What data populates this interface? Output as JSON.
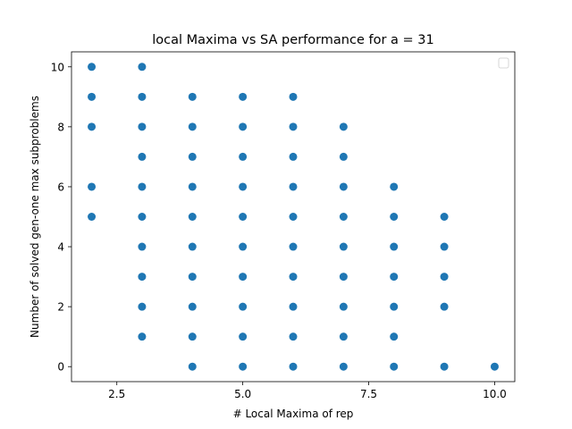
{
  "chart_data": {
    "type": "scatter",
    "title": "local Maxima vs SA performance for a = 31",
    "xlabel": "# Local Maxima of rep",
    "ylabel": "Number of solved gen-one max subproblems",
    "xlim": [
      1.6,
      10.4
    ],
    "ylim": [
      -0.5,
      10.5
    ],
    "xticks": [
      2.5,
      5.0,
      7.5,
      10.0
    ],
    "xtick_labels": [
      "2.5",
      "5.0",
      "7.5",
      "10.0"
    ],
    "yticks": [
      0,
      2,
      4,
      6,
      8,
      10
    ],
    "ytick_labels": [
      "0",
      "2",
      "4",
      "6",
      "8",
      "10"
    ],
    "grid": false,
    "legend": "top-right (empty)",
    "marker_color": "#1f77b4",
    "series": [
      {
        "points": [
          [
            2,
            10
          ],
          [
            2,
            9
          ],
          [
            2,
            8
          ],
          [
            2,
            6
          ],
          [
            2,
            5
          ],
          [
            3,
            10
          ],
          [
            3,
            9
          ],
          [
            3,
            8
          ],
          [
            3,
            7
          ],
          [
            3,
            6
          ],
          [
            3,
            5
          ],
          [
            3,
            4
          ],
          [
            3,
            3
          ],
          [
            3,
            2
          ],
          [
            3,
            1
          ],
          [
            4,
            9
          ],
          [
            4,
            8
          ],
          [
            4,
            7
          ],
          [
            4,
            6
          ],
          [
            4,
            5
          ],
          [
            4,
            4
          ],
          [
            4,
            3
          ],
          [
            4,
            2
          ],
          [
            4,
            1
          ],
          [
            4,
            0
          ],
          [
            5,
            9
          ],
          [
            5,
            8
          ],
          [
            5,
            7
          ],
          [
            5,
            6
          ],
          [
            5,
            5
          ],
          [
            5,
            4
          ],
          [
            5,
            3
          ],
          [
            5,
            2
          ],
          [
            5,
            1
          ],
          [
            5,
            0
          ],
          [
            6,
            9
          ],
          [
            6,
            8
          ],
          [
            6,
            7
          ],
          [
            6,
            6
          ],
          [
            6,
            5
          ],
          [
            6,
            4
          ],
          [
            6,
            3
          ],
          [
            6,
            2
          ],
          [
            6,
            1
          ],
          [
            6,
            0
          ],
          [
            7,
            8
          ],
          [
            7,
            7
          ],
          [
            7,
            6
          ],
          [
            7,
            5
          ],
          [
            7,
            4
          ],
          [
            7,
            3
          ],
          [
            7,
            2
          ],
          [
            7,
            1
          ],
          [
            7,
            0
          ],
          [
            8,
            6
          ],
          [
            8,
            5
          ],
          [
            8,
            4
          ],
          [
            8,
            3
          ],
          [
            8,
            2
          ],
          [
            8,
            1
          ],
          [
            8,
            0
          ],
          [
            9,
            5
          ],
          [
            9,
            4
          ],
          [
            9,
            3
          ],
          [
            9,
            2
          ],
          [
            9,
            0
          ],
          [
            10,
            0
          ]
        ]
      }
    ]
  }
}
